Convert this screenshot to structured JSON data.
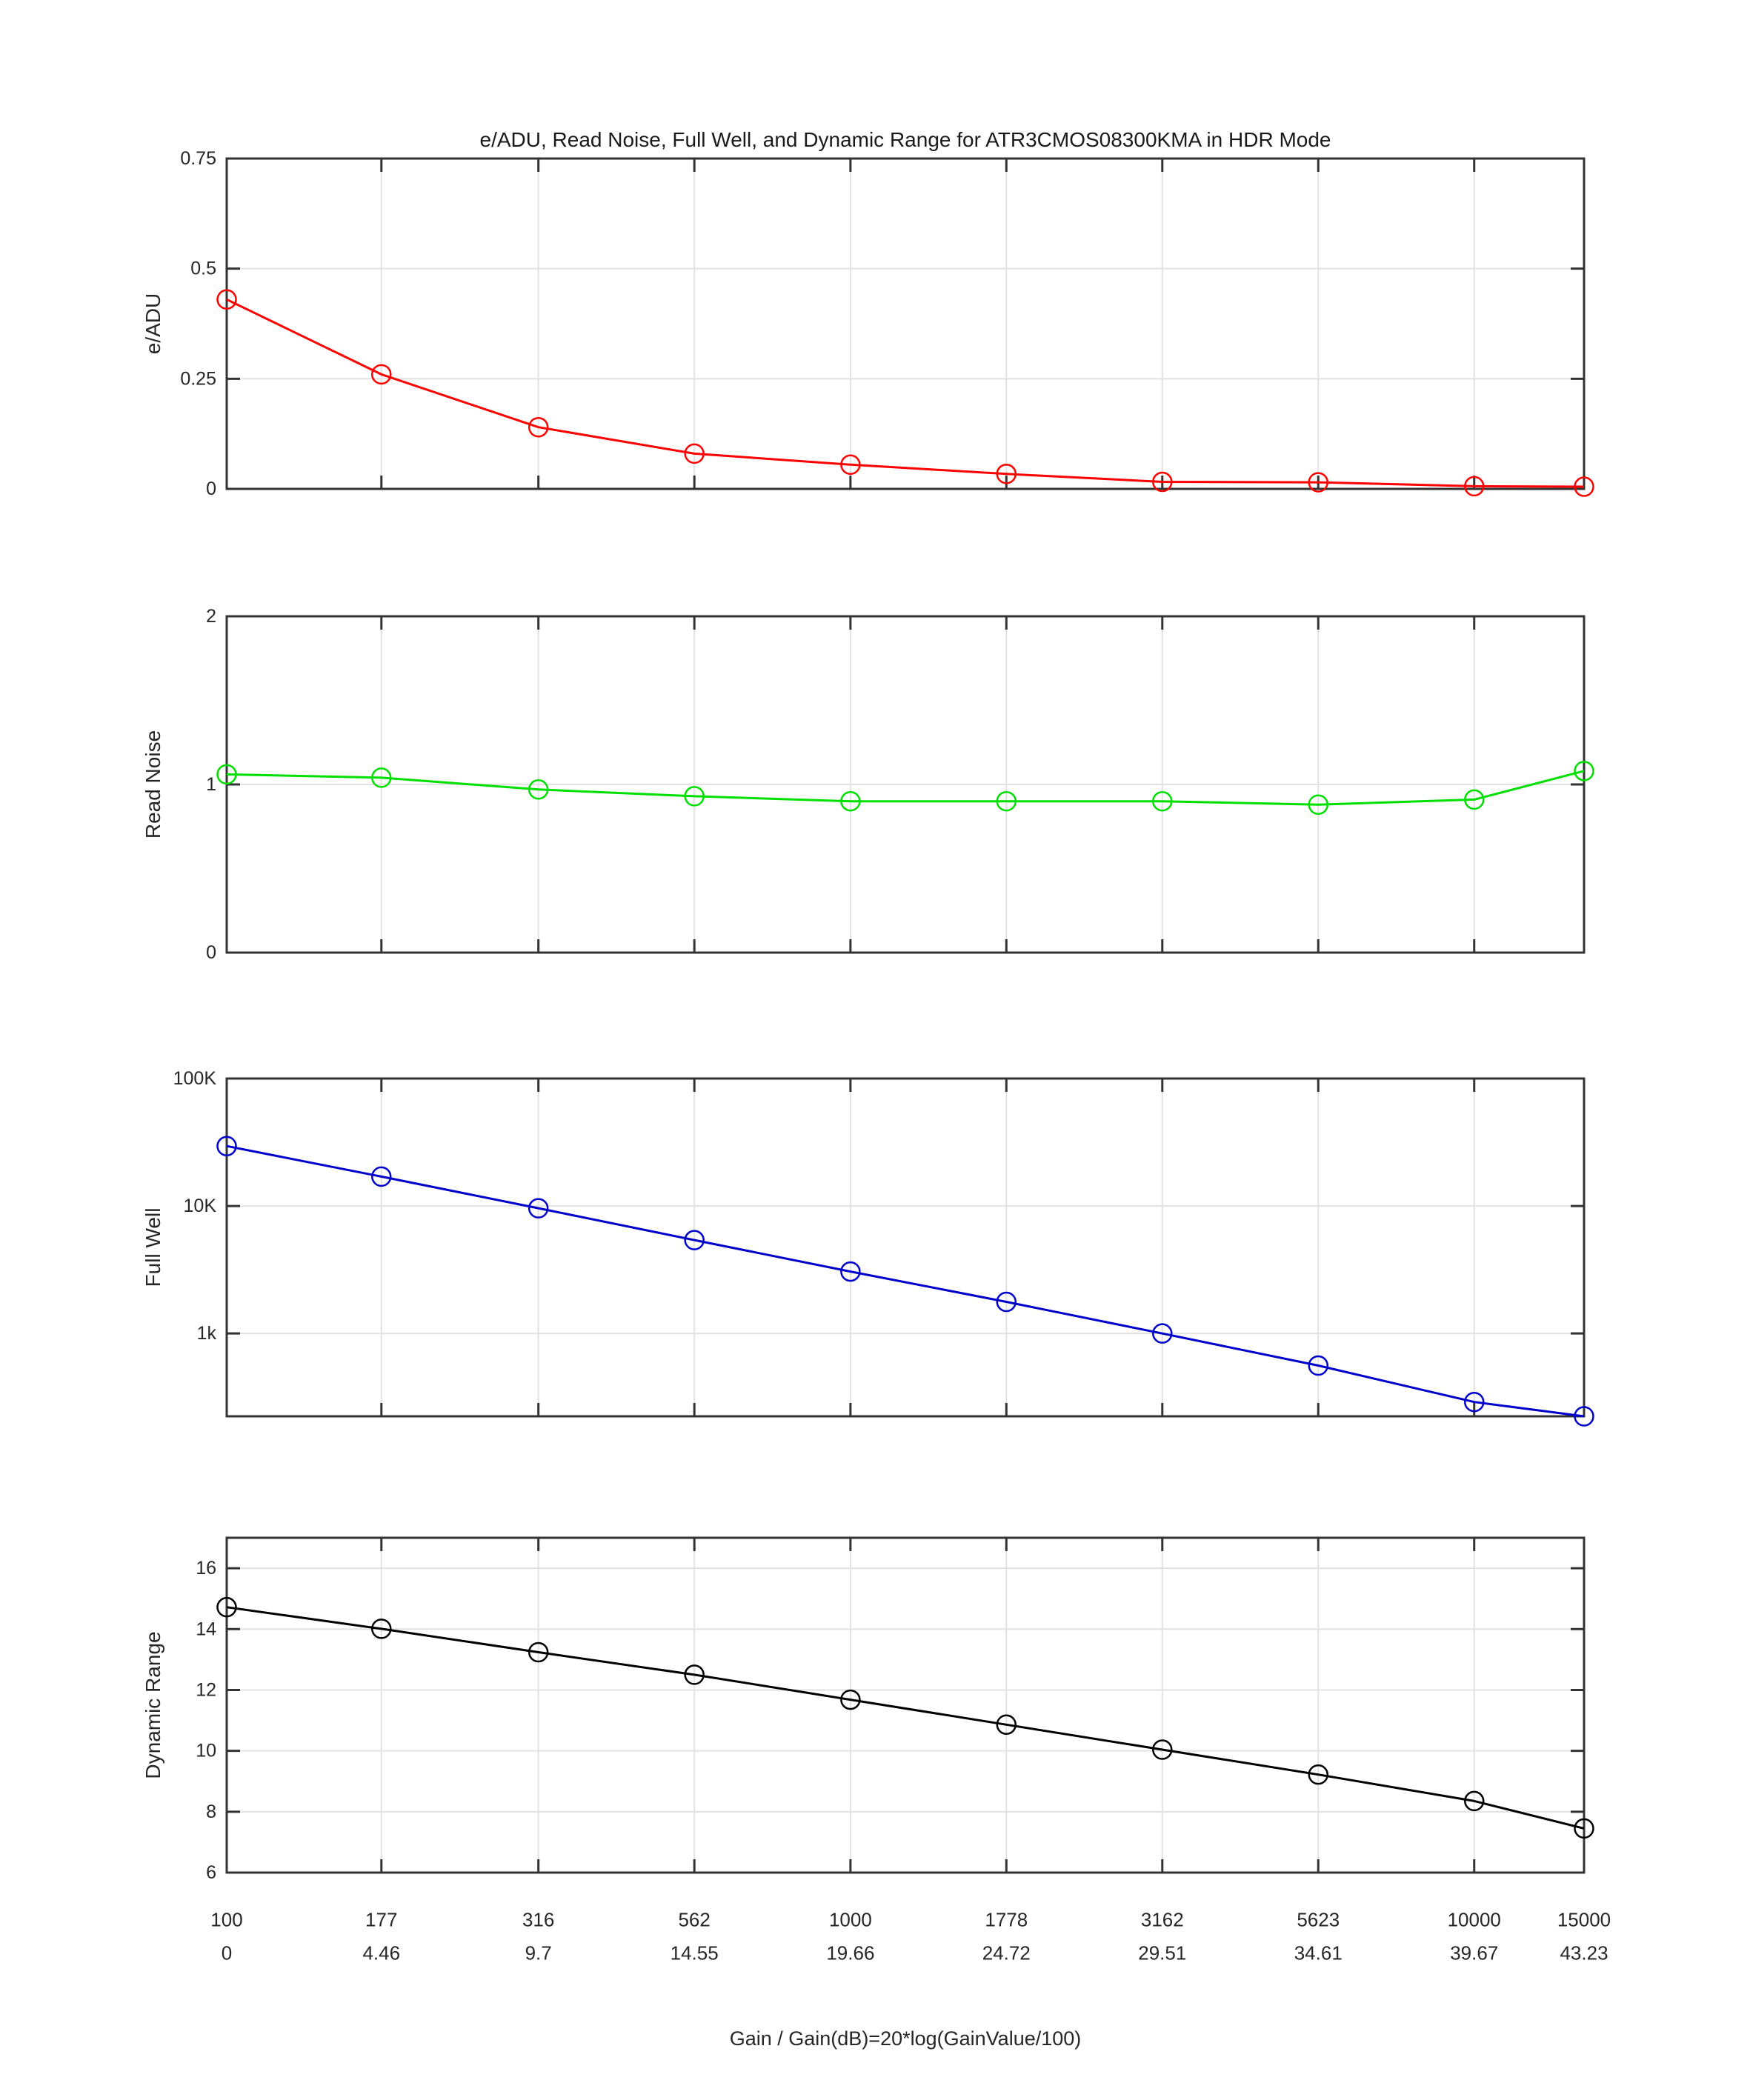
{
  "title": "e/ADU, Read Noise, Full Well, and Dynamic Range for ATR3CMOS08300KMA in HDR Mode",
  "xaxis": {
    "label": "Gain / Gain(dB)=20*log(GainValue/100)",
    "scale": "log",
    "gain_labels": [
      "100",
      "177",
      "316",
      "562",
      "1000",
      "1778",
      "3162",
      "5623",
      "10000",
      "15000"
    ],
    "gain_db_labels": [
      "0",
      "4.46",
      "9.7",
      "14.55",
      "19.66",
      "24.72",
      "29.51",
      "34.61",
      "39.67",
      "43.23"
    ]
  },
  "style": {
    "axis_color": "#333333",
    "grid_color": "#e2e2e2",
    "label_color": "#262626",
    "background": "#ffffff"
  },
  "chart_data": [
    {
      "type": "line",
      "name": "e/ADU",
      "ylabel": "e/ADU",
      "color": "#ff0000",
      "yscale": "linear",
      "ylim": [
        0,
        0.75
      ],
      "grid": true,
      "x": [
        100,
        177,
        316,
        562,
        1000,
        1778,
        3162,
        5623,
        10000,
        15000
      ],
      "values": [
        0.43,
        0.26,
        0.14,
        0.08,
        0.055,
        0.034,
        0.016,
        0.015,
        0.006,
        0.005
      ],
      "yticks": [
        {
          "v": 0,
          "label": "0"
        },
        {
          "v": 0.25,
          "label": "0.25"
        },
        {
          "v": 0.5,
          "label": "0.5"
        },
        {
          "v": 0.75,
          "label": "0.75"
        }
      ]
    },
    {
      "type": "line",
      "name": "Read Noise",
      "ylabel": "Read Noise",
      "color": "#00e000",
      "yscale": "linear",
      "ylim": [
        0,
        2
      ],
      "grid": true,
      "x": [
        100,
        177,
        316,
        562,
        1000,
        1778,
        3162,
        5623,
        10000,
        15000
      ],
      "values": [
        1.06,
        1.04,
        0.97,
        0.93,
        0.9,
        0.9,
        0.9,
        0.88,
        0.91,
        1.08
      ],
      "yticks": [
        {
          "v": 0,
          "label": "0"
        },
        {
          "v": 1,
          "label": "1"
        },
        {
          "v": 2,
          "label": "2"
        }
      ]
    },
    {
      "type": "line",
      "name": "Full Well",
      "ylabel": "Full Well",
      "color": "#0000cc",
      "yscale": "log",
      "ylim": [
        224,
        100000
      ],
      "grid": true,
      "x": [
        100,
        177,
        316,
        562,
        1000,
        1778,
        3162,
        5623,
        10000,
        15000
      ],
      "values": [
        29500,
        17000,
        9600,
        5400,
        3060,
        1770,
        1000,
        560,
        290,
        224
      ],
      "yticks": [
        {
          "v": 1000,
          "label": "1k"
        },
        {
          "v": 10000,
          "label": "10K"
        },
        {
          "v": 100000,
          "label": "100K"
        }
      ]
    },
    {
      "type": "line",
      "name": "Dynamic Range",
      "ylabel": "Dynamic Range",
      "color": "#000000",
      "yscale": "linear",
      "ylim": [
        6,
        17
      ],
      "grid": true,
      "x": [
        100,
        177,
        316,
        562,
        1000,
        1778,
        3162,
        5623,
        10000,
        15000
      ],
      "values": [
        14.72,
        14.01,
        13.24,
        12.5,
        11.68,
        10.86,
        10.04,
        9.22,
        8.35,
        7.45
      ],
      "yticks": [
        {
          "v": 6,
          "label": "6"
        },
        {
          "v": 8,
          "label": "8"
        },
        {
          "v": 10,
          "label": "10"
        },
        {
          "v": 12,
          "label": "12"
        },
        {
          "v": 14,
          "label": "14"
        },
        {
          "v": 16,
          "label": "16"
        }
      ]
    }
  ]
}
